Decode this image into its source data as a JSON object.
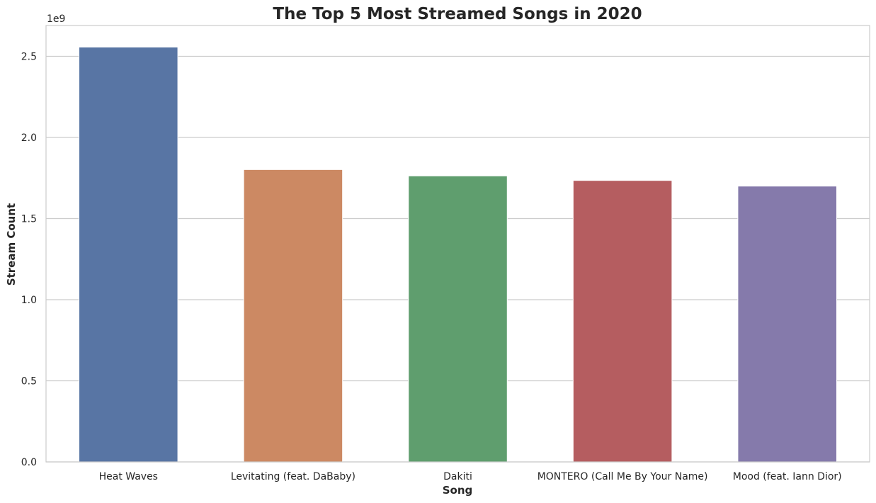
{
  "chart_data": {
    "type": "bar",
    "title": "The Top 5 Most Streamed Songs in 2020",
    "xlabel": "Song",
    "ylabel": "Stream Count",
    "y_offset_label": "1e9",
    "categories": [
      "Heat Waves",
      "Levitating (feat. DaBaby)",
      "Dakiti",
      "MONTERO (Call Me By Your Name)",
      "Mood (feat. Iann Dior)"
    ],
    "values": [
      2557000000,
      1802000000,
      1763000000,
      1735000000,
      1700000000
    ],
    "colors": [
      "#5875a4",
      "#cc8963",
      "#5f9e6e",
      "#b55d60",
      "#857aab"
    ],
    "ylim": [
      0,
      2690000000
    ],
    "yticks": [
      0,
      500000000,
      1000000000,
      1500000000,
      2000000000,
      2500000000
    ],
    "ytick_labels": [
      "0.0",
      "0.5",
      "1.0",
      "1.5",
      "2.0",
      "2.5"
    ],
    "grid": "horizontal",
    "legend": "none"
  }
}
